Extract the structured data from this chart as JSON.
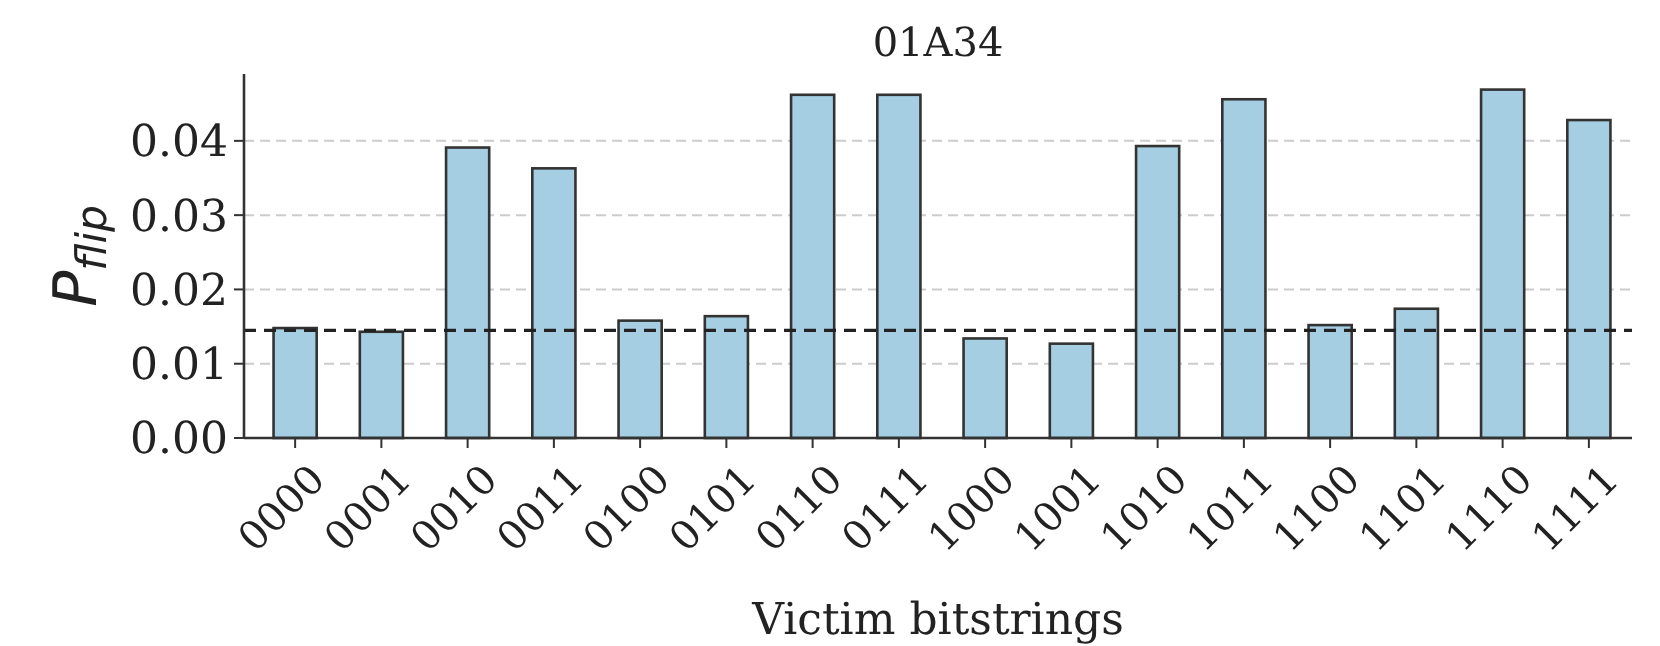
{
  "chart_data": {
    "type": "bar",
    "title": "01A34",
    "xlabel": "Victim bitstrings",
    "ylabel": "P$_{flip}$",
    "categories": [
      "0000",
      "0001",
      "0010",
      "0011",
      "0100",
      "0101",
      "0110",
      "0111",
      "1000",
      "1001",
      "1010",
      "1011",
      "1100",
      "1101",
      "1110",
      "1111"
    ],
    "values": [
      0.0148,
      0.0143,
      0.0391,
      0.0363,
      0.0158,
      0.0164,
      0.0462,
      0.0462,
      0.0134,
      0.0127,
      0.0393,
      0.0456,
      0.0152,
      0.0174,
      0.0469,
      0.0428
    ],
    "color": "#a6cee3",
    "ylim": [
      0,
      0.049
    ],
    "yticks": [
      {
        "value": 0,
        "label": "0.00"
      },
      {
        "value": 0.01,
        "label": "0.01"
      },
      {
        "value": 0.02,
        "label": "0.02"
      },
      {
        "value": 0.03,
        "label": "0.03"
      },
      {
        "value": 0.04,
        "label": "0.04"
      }
    ],
    "grid": "y",
    "ref_lines": [
      {
        "axis": "y",
        "value": 0.0145,
        "line_style": "dashed",
        "color": "#222222"
      }
    ]
  }
}
